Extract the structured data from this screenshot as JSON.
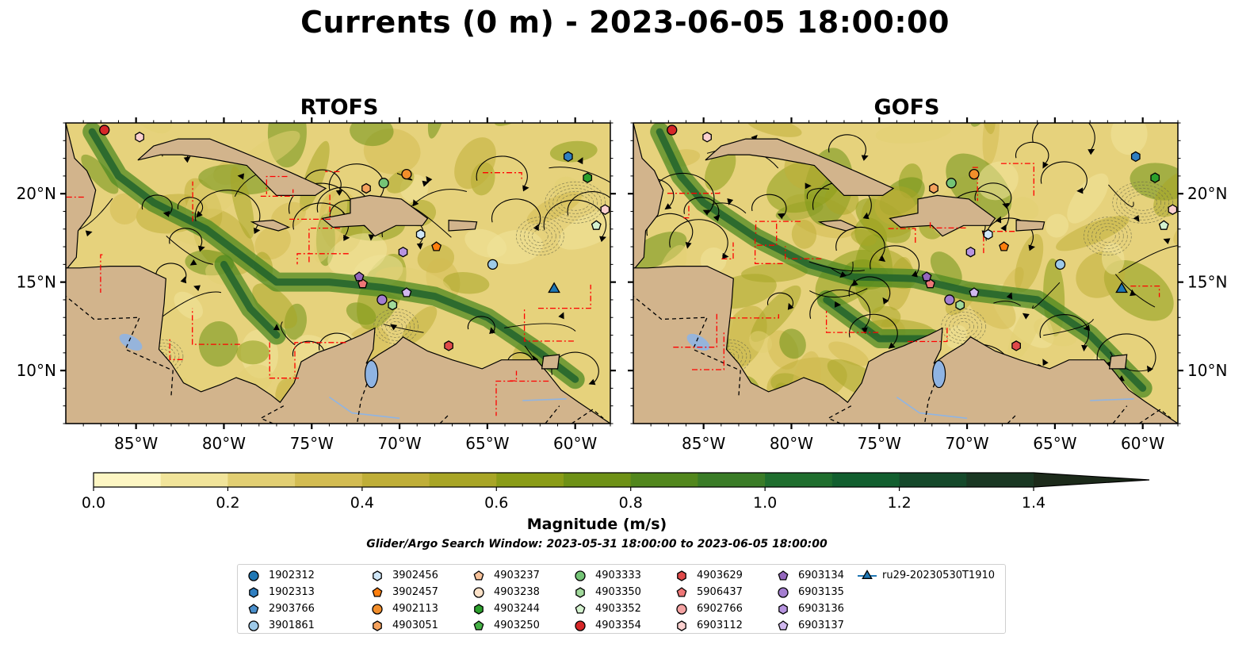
{
  "title": "Currents (0 m) - 2023-06-05 18:00:00",
  "panels": [
    {
      "id": "rtofs",
      "title": "RTOFS"
    },
    {
      "id": "gofs",
      "title": "GOFS"
    }
  ],
  "colorbar": {
    "label": "Magnitude (m/s)",
    "min": 0.0,
    "max": 1.5,
    "step": 0.1,
    "extend": "max",
    "ticks": [
      "0.0",
      "0.2",
      "0.4",
      "0.6",
      "0.8",
      "1.0",
      "1.2",
      "1.4"
    ],
    "colors": [
      "#fdf6c3",
      "#f1e49a",
      "#e2cf73",
      "#d3bc52",
      "#bfae38",
      "#a8a526",
      "#8a9c17",
      "#6e9116",
      "#52871d",
      "#3a7c27",
      "#1f6e2e",
      "#125f2f",
      "#15492b",
      "#1a3823",
      "#1c2a1a"
    ]
  },
  "search_window": "Glider/Argo Search Window: 2023-05-31 18:00:00 to 2023-06-05 18:00:00",
  "chart_data": {
    "type": "map",
    "map": {
      "lon_range": [
        -89.0,
        -58.0
      ],
      "lat_range": [
        7.0,
        24.0
      ],
      "x_ticks": [
        "85°W",
        "80°W",
        "75°W",
        "70°W",
        "65°W",
        "60°W"
      ],
      "y_ticks": [
        "10°N",
        "15°N",
        "20°N"
      ],
      "land_color": "#d2b48c",
      "lake_color": "#8fb4e3",
      "boundary_color": "#ff0000"
    },
    "series": [
      {
        "name": "1902312",
        "marker": "circle",
        "color": "#1f77b4",
        "points": []
      },
      {
        "name": "1902313",
        "marker": "hexagon",
        "color": "#2f7fc1",
        "points": [
          {
            "lon": -60.4,
            "lat": 22.1
          }
        ]
      },
      {
        "name": "2903766",
        "marker": "pentagon",
        "color": "#4a8fcc",
        "points": []
      },
      {
        "name": "3901861",
        "marker": "circle",
        "color": "#9ecae9",
        "points": [
          {
            "lon": -64.7,
            "lat": 16.0
          }
        ]
      },
      {
        "name": "3902456",
        "marker": "hexagon",
        "color": "#cfe6f7",
        "points": [
          {
            "lon": -68.8,
            "lat": 17.7
          }
        ]
      },
      {
        "name": "3902457",
        "marker": "pentagon",
        "color": "#ff7f0e",
        "points": [
          {
            "lon": -67.9,
            "lat": 17.0
          }
        ]
      },
      {
        "name": "4902113",
        "marker": "circle",
        "color": "#f28e2b",
        "points": [
          {
            "lon": -69.6,
            "lat": 21.1
          }
        ]
      },
      {
        "name": "4903051",
        "marker": "hexagon",
        "color": "#f5a25d",
        "points": [
          {
            "lon": -71.9,
            "lat": 20.3
          }
        ]
      },
      {
        "name": "4903237",
        "marker": "pentagon",
        "color": "#f8c29a",
        "points": []
      },
      {
        "name": "4903238",
        "marker": "circle",
        "color": "#fde2c8",
        "points": []
      },
      {
        "name": "4903244",
        "marker": "hexagon",
        "color": "#2ca02c",
        "points": [
          {
            "lon": -59.3,
            "lat": 20.9
          }
        ]
      },
      {
        "name": "4903250",
        "marker": "pentagon",
        "color": "#45b045",
        "points": []
      },
      {
        "name": "4903333",
        "marker": "circle",
        "color": "#74c476",
        "points": [
          {
            "lon": -70.9,
            "lat": 20.6
          }
        ]
      },
      {
        "name": "4903350",
        "marker": "hexagon",
        "color": "#a1d99b",
        "points": [
          {
            "lon": -70.4,
            "lat": 13.7
          }
        ]
      },
      {
        "name": "4903352",
        "marker": "pentagon",
        "color": "#d4f2cf",
        "points": [
          {
            "lon": -58.8,
            "lat": 18.2
          }
        ]
      },
      {
        "name": "4903354",
        "marker": "circle",
        "color": "#d62728",
        "points": [
          {
            "lon": -86.8,
            "lat": 23.6
          }
        ]
      },
      {
        "name": "4903629",
        "marker": "hexagon",
        "color": "#e04a4a",
        "points": [
          {
            "lon": -67.2,
            "lat": 11.4
          }
        ]
      },
      {
        "name": "5906437",
        "marker": "pentagon",
        "color": "#ee7777",
        "points": [
          {
            "lon": -72.1,
            "lat": 14.9
          }
        ]
      },
      {
        "name": "6902766",
        "marker": "circle",
        "color": "#f4a3a3",
        "points": []
      },
      {
        "name": "6903112",
        "marker": "hexagon",
        "color": "#fbd0cf",
        "points": [
          {
            "lon": -84.8,
            "lat": 23.2
          },
          {
            "lon": -58.3,
            "lat": 19.1
          }
        ]
      },
      {
        "name": "6903134",
        "marker": "pentagon",
        "color": "#9467bd",
        "points": [
          {
            "lon": -72.3,
            "lat": 15.3
          }
        ]
      },
      {
        "name": "6903135",
        "marker": "circle",
        "color": "#a47ed0",
        "points": [
          {
            "lon": -71.0,
            "lat": 14.0
          }
        ]
      },
      {
        "name": "6903136",
        "marker": "hexagon",
        "color": "#b794e0",
        "points": [
          {
            "lon": -69.8,
            "lat": 16.7
          }
        ]
      },
      {
        "name": "6903137",
        "marker": "pentagon",
        "color": "#d1b8ef",
        "points": [
          {
            "lon": -69.6,
            "lat": 14.4
          }
        ]
      },
      {
        "name": "ru29-20230530T1910",
        "marker": "triangle",
        "color": "#1f77b4",
        "points": [
          {
            "lon": -61.2,
            "lat": 14.6
          }
        ]
      }
    ]
  }
}
